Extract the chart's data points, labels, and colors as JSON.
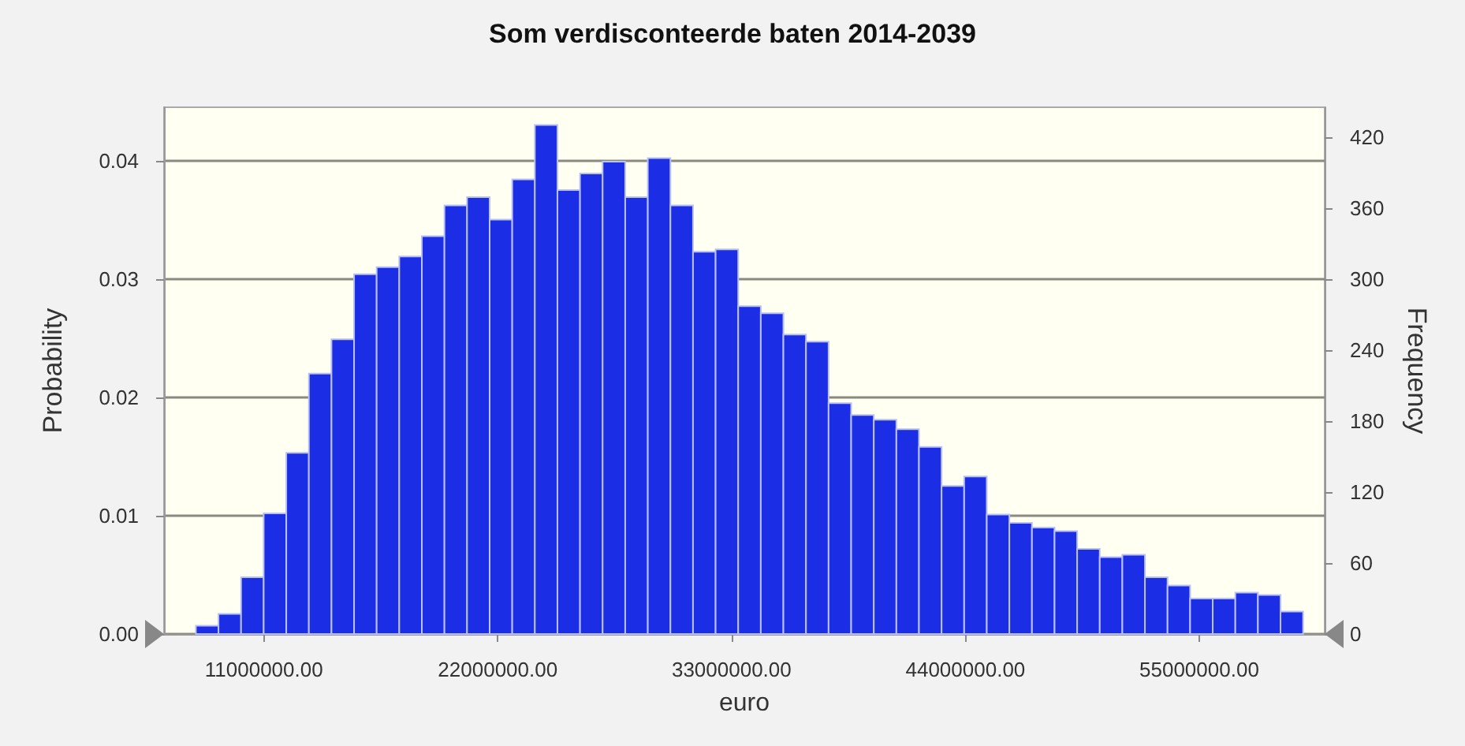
{
  "chart_data": {
    "type": "histogram",
    "title": "Som verdisconteerde baten 2014-2039",
    "xlabel": "euro",
    "ylabel": "Probability",
    "y2label": "Frequency",
    "color": "#1b2ee6",
    "grid": "y",
    "bins": [
      7800000,
      8863000,
      9926000,
      10989000,
      12052000,
      13115000,
      14178000,
      15241000,
      16304000,
      17367000,
      18430000,
      19493000,
      20556000,
      21619000,
      22682000,
      23745000,
      24808000,
      25871000,
      26934000,
      27997000,
      29060000,
      30123000,
      31186000,
      32249000,
      33312000,
      34375000,
      35438000,
      36501000,
      37564000,
      38627000,
      39690000,
      40753000,
      41816000,
      42879000,
      43942000,
      45005000,
      46068000,
      47131000,
      48194000,
      49257000,
      50320000,
      51383000,
      52446000,
      53509000,
      54572000,
      55635000,
      56698000,
      57761000,
      58824000,
      59887000
    ],
    "values": [
      0.0007,
      0.0017,
      0.0048,
      0.0102,
      0.0153,
      0.022,
      0.0249,
      0.0304,
      0.031,
      0.0319,
      0.0336,
      0.0362,
      0.0369,
      0.035,
      0.0384,
      0.043,
      0.0375,
      0.0389,
      0.0399,
      0.0369,
      0.0402,
      0.0362,
      0.0323,
      0.0325,
      0.0277,
      0.0271,
      0.0253,
      0.0247,
      0.0195,
      0.0185,
      0.0181,
      0.0173,
      0.0158,
      0.0125,
      0.0133,
      0.0101,
      0.0094,
      0.009,
      0.0087,
      0.0072,
      0.0065,
      0.0067,
      0.0048,
      0.0041,
      0.003,
      0.003,
      0.0035,
      0.0033,
      0.0019
    ],
    "xlim": [
      6300000,
      60900000
    ],
    "xticks": [
      {
        "value": 11000000,
        "label": "11000000.00"
      },
      {
        "value": 22000000,
        "label": "22000000.00"
      },
      {
        "value": 33000000,
        "label": "33000000.00"
      },
      {
        "value": 44000000,
        "label": "44000000.00"
      },
      {
        "value": 55000000,
        "label": "55000000.00"
      }
    ],
    "ylim": [
      0,
      0.0445
    ],
    "yticks": [
      {
        "value": 0,
        "label": "0.00"
      },
      {
        "value": 0.01,
        "label": "0.01"
      },
      {
        "value": 0.02,
        "label": "0.02"
      },
      {
        "value": 0.03,
        "label": "0.03"
      },
      {
        "value": 0.04,
        "label": "0.04"
      }
    ],
    "y2lim": [
      0,
      445
    ],
    "y2ticks": [
      0,
      60,
      120,
      180,
      240,
      300,
      360,
      420
    ]
  }
}
